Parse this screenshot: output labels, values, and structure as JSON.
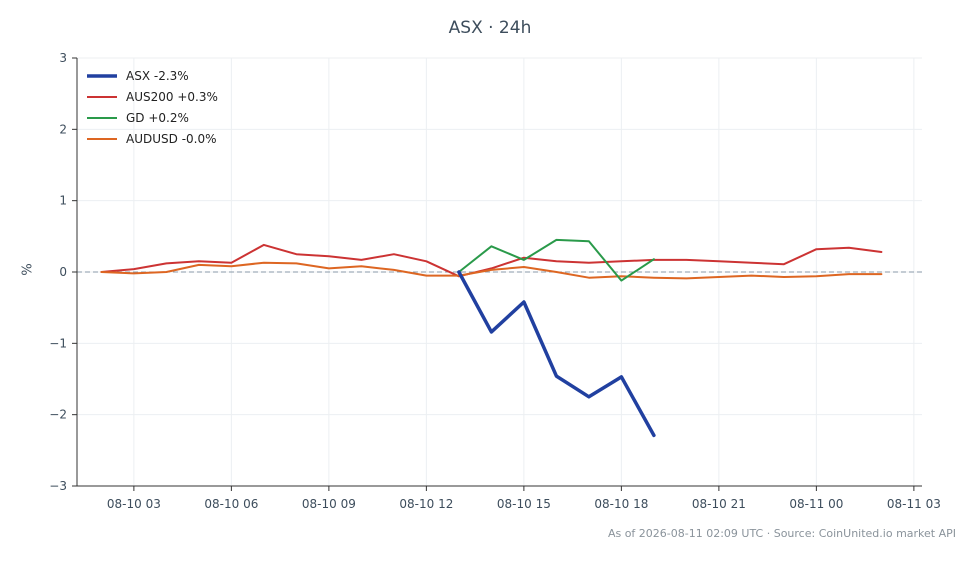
{
  "chart_data": {
    "type": "line",
    "title": "ASX · 24h",
    "xlabel": "",
    "ylabel": "%",
    "ylim": [
      -3,
      3
    ],
    "xlim": [
      "08-10 01:15",
      "08-11 03:15"
    ],
    "yticks": [
      3,
      2,
      1,
      0,
      -1,
      -2,
      -3
    ],
    "ytick_labels": [
      "3",
      "2",
      "1",
      "0",
      "−1",
      "−2",
      "−3"
    ],
    "xticks": [
      "08-10 03:00",
      "08-10 06:00",
      "08-10 09:00",
      "08-10 12:00",
      "08-10 15:00",
      "08-10 18:00",
      "08-10 21:00",
      "08-11 00:00",
      "08-11 03:00"
    ],
    "xtick_labels": [
      "08-10 03",
      "08-10 06",
      "08-10 09",
      "08-10 12",
      "08-10 15",
      "08-10 18",
      "08-10 21",
      "08-11 00",
      "08-11 03"
    ],
    "grid": true,
    "zero_line": "dashed",
    "legend_position": "top-left",
    "series": [
      {
        "name": "ASX -2.3%",
        "color": "#2140a0",
        "width": 3.5,
        "x": [
          "08-10 13:00",
          "08-10 14:00",
          "08-10 15:00",
          "08-10 16:00",
          "08-10 17:00",
          "08-10 18:00",
          "08-10 19:00"
        ],
        "y": [
          0.0,
          -0.84,
          -0.42,
          -1.46,
          -1.75,
          -1.47,
          -2.29
        ]
      },
      {
        "name": "AUS200 +0.3%",
        "color": "#cc3333",
        "width": 2,
        "x": [
          "08-10 02:00",
          "08-10 03:00",
          "08-10 04:00",
          "08-10 05:00",
          "08-10 06:00",
          "08-10 07:00",
          "08-10 08:00",
          "08-10 09:00",
          "08-10 10:00",
          "08-10 11:00",
          "08-10 12:00",
          "08-10 13:00",
          "08-10 14:00",
          "08-10 15:00",
          "08-10 16:00",
          "08-10 17:00",
          "08-10 18:00",
          "08-10 19:00",
          "08-10 20:00",
          "08-10 21:00",
          "08-10 22:00",
          "08-10 23:00",
          "08-11 00:00",
          "08-11 01:00",
          "08-11 02:00"
        ],
        "y": [
          0.0,
          0.04,
          0.12,
          0.15,
          0.13,
          0.38,
          0.25,
          0.22,
          0.17,
          0.25,
          0.15,
          -0.06,
          0.05,
          0.2,
          0.15,
          0.13,
          0.15,
          0.17,
          0.17,
          0.15,
          0.13,
          0.11,
          0.32,
          0.34,
          0.28
        ]
      },
      {
        "name": "GD +0.2%",
        "color": "#2a9a4a",
        "width": 2,
        "x": [
          "08-10 13:00",
          "08-10 14:00",
          "08-10 15:00",
          "08-10 16:00",
          "08-10 17:00",
          "08-10 18:00",
          "08-10 19:00"
        ],
        "y": [
          0.0,
          0.36,
          0.17,
          0.45,
          0.43,
          -0.12,
          0.18
        ]
      },
      {
        "name": "AUDUSD -0.0%",
        "color": "#dd6622",
        "width": 2,
        "x": [
          "08-10 02:00",
          "08-10 03:00",
          "08-10 04:00",
          "08-10 05:00",
          "08-10 06:00",
          "08-10 07:00",
          "08-10 08:00",
          "08-10 09:00",
          "08-10 10:00",
          "08-10 11:00",
          "08-10 12:00",
          "08-10 13:00",
          "08-10 14:00",
          "08-10 15:00",
          "08-10 16:00",
          "08-10 17:00",
          "08-10 18:00",
          "08-10 19:00",
          "08-10 20:00",
          "08-10 21:00",
          "08-10 22:00",
          "08-10 23:00",
          "08-11 00:00",
          "08-11 01:00",
          "08-11 02:00"
        ],
        "y": [
          0.0,
          -0.02,
          0.0,
          0.1,
          0.08,
          0.13,
          0.12,
          0.05,
          0.08,
          0.03,
          -0.05,
          -0.05,
          0.03,
          0.07,
          0.0,
          -0.08,
          -0.06,
          -0.08,
          -0.09,
          -0.07,
          -0.05,
          -0.07,
          -0.06,
          -0.03,
          -0.03
        ]
      }
    ]
  },
  "footer": "As of 2026-08-11 02:09 UTC · Source: CoinUnited.io market API"
}
